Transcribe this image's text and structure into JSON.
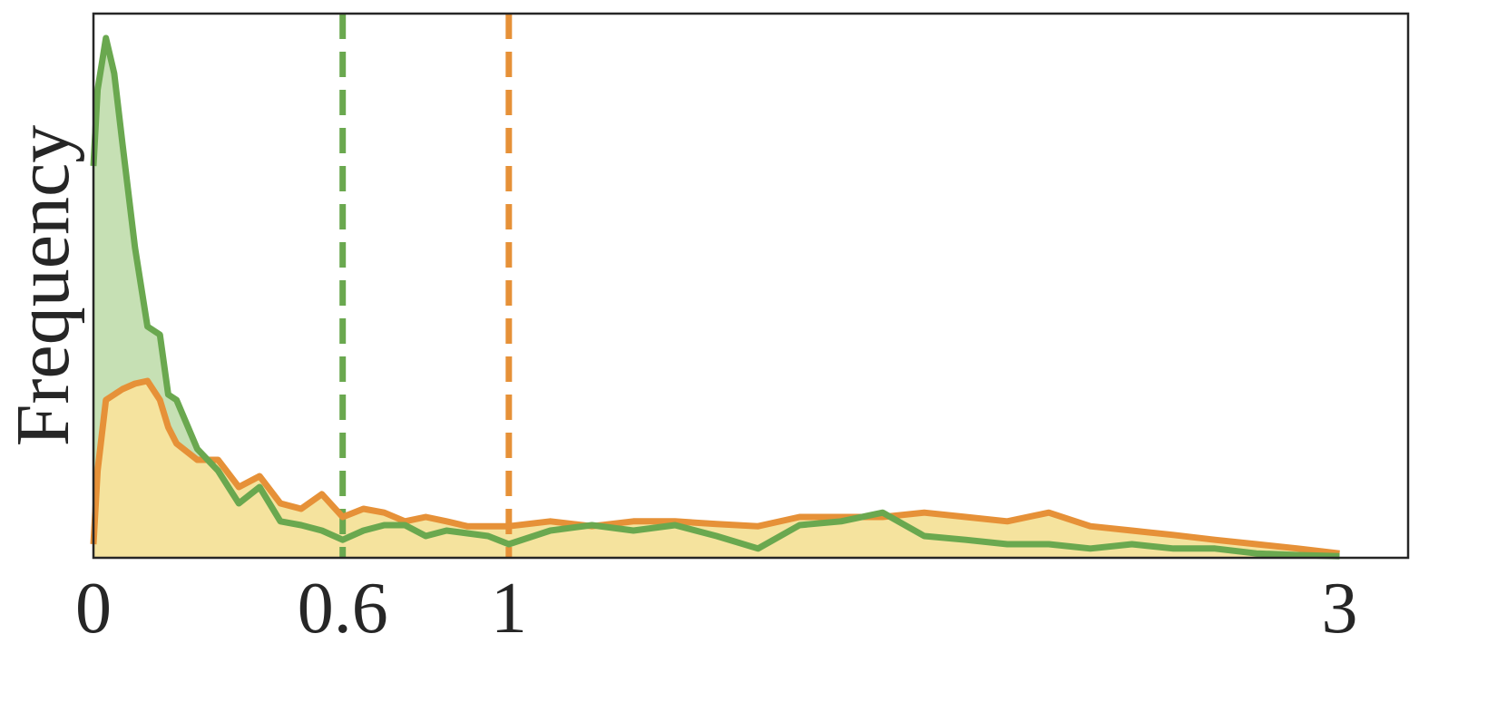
{
  "chart_data": {
    "type": "area",
    "y_label": "Frequency",
    "x": [
      0,
      0.01,
      0.03,
      0.05,
      0.07,
      0.1,
      0.13,
      0.16,
      0.18,
      0.2,
      0.25,
      0.3,
      0.35,
      0.4,
      0.45,
      0.5,
      0.55,
      0.6,
      0.65,
      0.7,
      0.75,
      0.8,
      0.85,
      0.9,
      0.95,
      1.0,
      1.1,
      1.2,
      1.3,
      1.4,
      1.5,
      1.6,
      1.7,
      1.8,
      1.9,
      2.0,
      2.1,
      2.2,
      2.3,
      2.4,
      2.5,
      2.6,
      2.7,
      2.8,
      2.9,
      3.0
    ],
    "series": [
      {
        "color": "#6aa84f",
        "fill": "#c6e0b4",
        "values": [
          72,
          86,
          95.5,
          89,
          76,
          57,
          42.5,
          41,
          30,
          29,
          20,
          16,
          10,
          13,
          6.7,
          6,
          5,
          3.3,
          5,
          6,
          6,
          4,
          5,
          4.5,
          4,
          2.5,
          5,
          6,
          5,
          6,
          4,
          1.7,
          6,
          6.7,
          8.3,
          4,
          3.3,
          2.5,
          2.5,
          1.7,
          2.5,
          1.7,
          1.7,
          0.8,
          0.5,
          0.3
        ]
      },
      {
        "color": "#e69138",
        "fill": "#f5e39e",
        "values": [
          2.5,
          16,
          29,
          30,
          31,
          32,
          32.5,
          29,
          24,
          21,
          18,
          18,
          13,
          15,
          10,
          9,
          11.7,
          7.5,
          9,
          8.3,
          6.7,
          7.5,
          6.7,
          5.8,
          5.8,
          5.8,
          6.7,
          5.8,
          6.7,
          6.7,
          6.2,
          5.8,
          7.5,
          7.5,
          7.5,
          8.3,
          7.5,
          6.7,
          8.3,
          5.8,
          5,
          4.2,
          3.3,
          2.5,
          1.7,
          0.8
        ]
      }
    ],
    "vlines": [
      {
        "x": 0.6,
        "color": "#6aa84f"
      },
      {
        "x": 1,
        "color": "#e69138"
      }
    ],
    "xlim": [
      0,
      3.165
    ],
    "ylim": [
      0,
      100
    ],
    "xticks": [
      0,
      0.6,
      1,
      3
    ]
  }
}
